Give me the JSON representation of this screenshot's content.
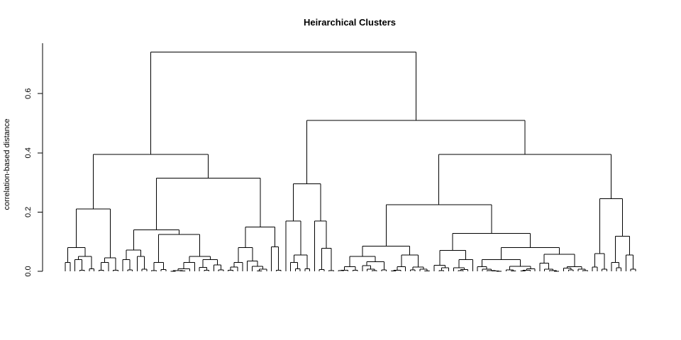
{
  "chart_data": {
    "type": "dendrogram",
    "title": "Heirarchical Clusters",
    "xlabel": "",
    "ylabel": "correlation-based distance",
    "ylim": [
      0,
      0.77
    ],
    "y_ticks": [
      "0.0",
      "0.2",
      "0.4",
      "0.6"
    ],
    "y_tick_values": [
      0,
      0.2,
      0.4,
      0.6
    ],
    "leaf_count": 150,
    "merge_heights": {
      "root": 0.74,
      "left_main": 0.395,
      "right_main": 0.51,
      "left_a": 0.21,
      "left_b": 0.315,
      "right_a": 0.295,
      "right_b": 0.395,
      "right_b_left": 0.225,
      "right_b_right": 0.245
    },
    "line_color": "#000000"
  }
}
